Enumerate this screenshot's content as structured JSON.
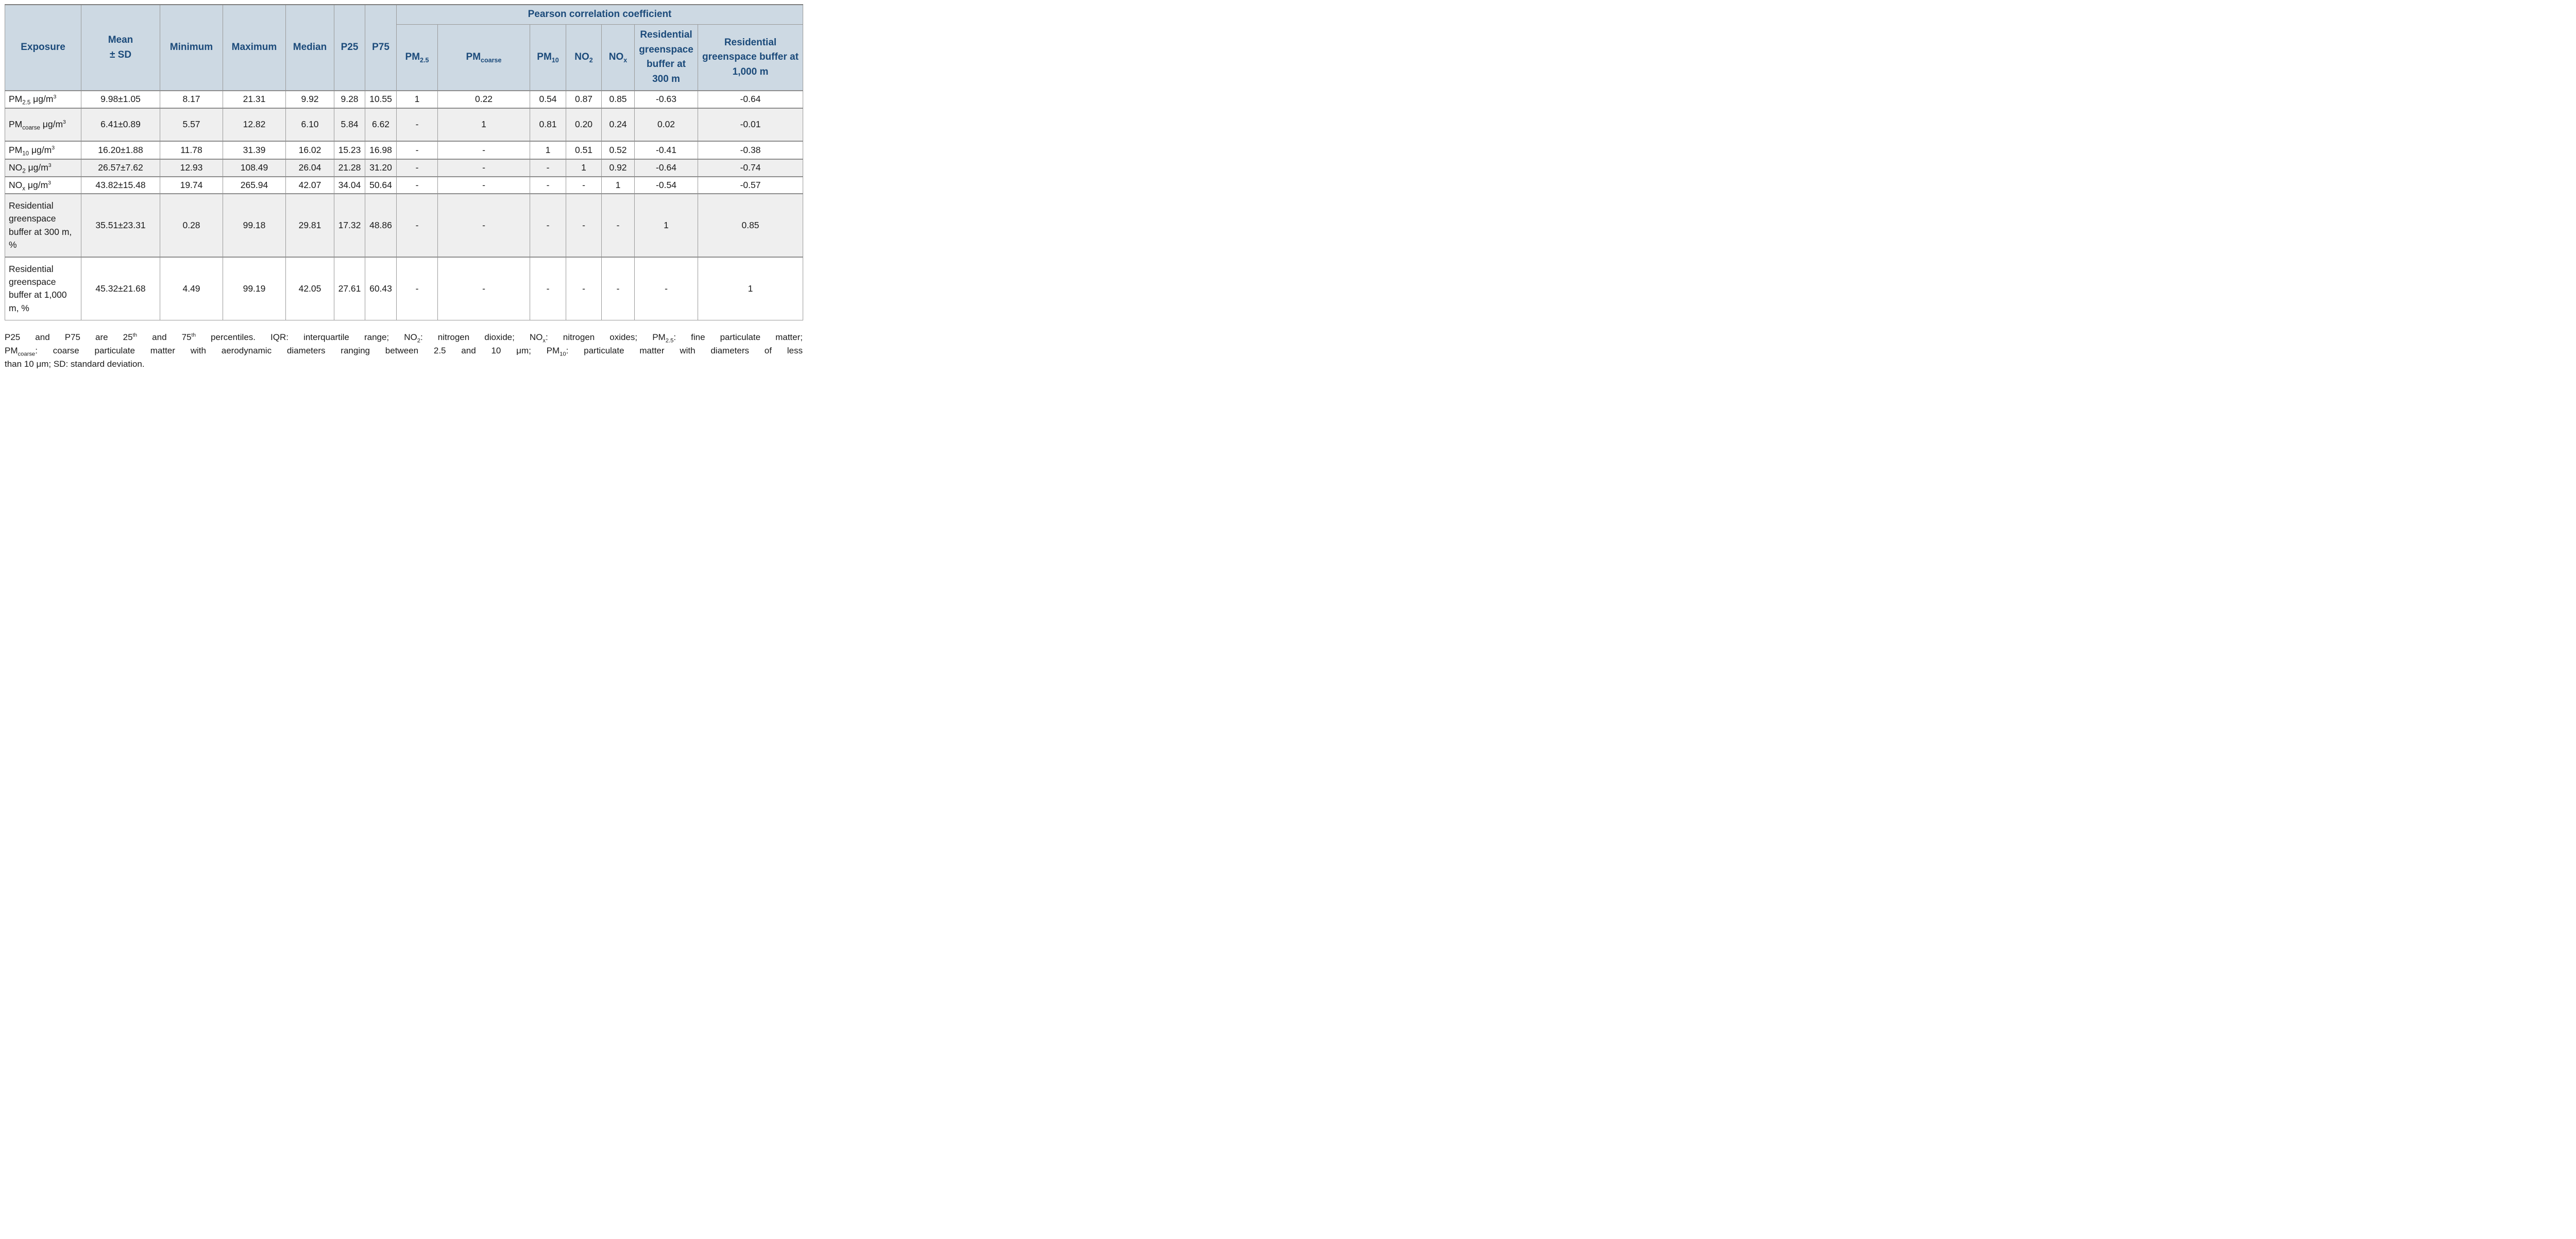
{
  "table": {
    "stat_columns": [
      {
        "key": "exposure",
        "label": "Exposure"
      },
      {
        "key": "mean_sd",
        "label": "Mean\n± SD"
      },
      {
        "key": "minimum",
        "label": "Minimum"
      },
      {
        "key": "maximum",
        "label": "Maximum"
      },
      {
        "key": "median",
        "label": "Median"
      },
      {
        "key": "p25",
        "label": "P25"
      },
      {
        "key": "p75",
        "label": "P75"
      }
    ],
    "pearson_group_label": "Pearson correlation coefficient",
    "pearson_columns": [
      {
        "key": "pm25",
        "label": "PM~2.5~"
      },
      {
        "key": "pmcoarse",
        "label": "PM~coarse~"
      },
      {
        "key": "pm10",
        "label": "PM~10~"
      },
      {
        "key": "no2",
        "label": "NO~2~"
      },
      {
        "key": "nox",
        "label": "NO~x~"
      },
      {
        "key": "green300",
        "label": "Residential greenspace buffer at 300 m"
      },
      {
        "key": "green1000",
        "label": "Residential greenspace buffer at 1,000 m"
      }
    ],
    "rows": [
      {
        "label": "PM~2.5~ μg/m^3^",
        "values": [
          "9.98±1.05",
          "8.17",
          "21.31",
          "9.92",
          "9.28",
          "10.55",
          "1",
          "0.22",
          "0.54",
          "0.87",
          "0.85",
          "-0.63",
          "-0.64"
        ]
      },
      {
        "label": "PM~coarse~ μg/m^3^",
        "values": [
          "6.41±0.89",
          "5.57",
          "12.82",
          "6.10",
          "5.84",
          "6.62",
          "-",
          "1",
          "0.81",
          "0.20",
          "0.24",
          "0.02",
          "-0.01"
        ]
      },
      {
        "label": "PM~10~ μg/m^3^",
        "values": [
          "16.20±1.88",
          "11.78",
          "31.39",
          "16.02",
          "15.23",
          "16.98",
          "-",
          "-",
          "1",
          "0.51",
          "0.52",
          "-0.41",
          "-0.38"
        ]
      },
      {
        "label": "NO~2~ μg/m^3^",
        "values": [
          "26.57±7.62",
          "12.93",
          "108.49",
          "26.04",
          "21.28",
          "31.20",
          "-",
          "-",
          "-",
          "1",
          "0.92",
          "-0.64",
          "-0.74"
        ]
      },
      {
        "label": "NO~x~ μg/m^3^",
        "values": [
          "43.82±15.48",
          "19.74",
          "265.94",
          "42.07",
          "34.04",
          "50.64",
          "-",
          "-",
          "-",
          "-",
          "1",
          "-0.54",
          "-0.57"
        ]
      },
      {
        "label": "Residential greenspace buffer at 300 m, %",
        "values": [
          "35.51±23.31",
          "0.28",
          "99.18",
          "29.81",
          "17.32",
          "48.86",
          "-",
          "-",
          "-",
          "-",
          "-",
          "1",
          "0.85"
        ]
      },
      {
        "label": "Residential greenspace buffer at 1,000 m, %",
        "values": [
          "45.32±21.68",
          "4.49",
          "99.19",
          "42.05",
          "27.61",
          "60.43",
          "-",
          "-",
          "-",
          "-",
          "-",
          "-",
          "1"
        ]
      }
    ],
    "footnote_lines": [
      "P25 and P75 are 25^th^ and 75^th^ percentiles. IQR: interquartile range; NO~2~: nitrogen dioxide; NO~x~: nitrogen oxides; PM~2.5~: fine particulate matter;",
      "PM~coarse~: coarse particulate matter with aerodynamic diameters ranging between 2.5 and 10 μm; PM~10~: particulate matter with diameters of less",
      "than 10 μm; SD: standard deviation."
    ]
  },
  "colors": {
    "header_bg": "#cdd9e3",
    "header_text": "#1b4a7a",
    "border": "#9a9a9a",
    "row_alt_bg": "#efefef",
    "body_text": "#1a1a1a"
  }
}
